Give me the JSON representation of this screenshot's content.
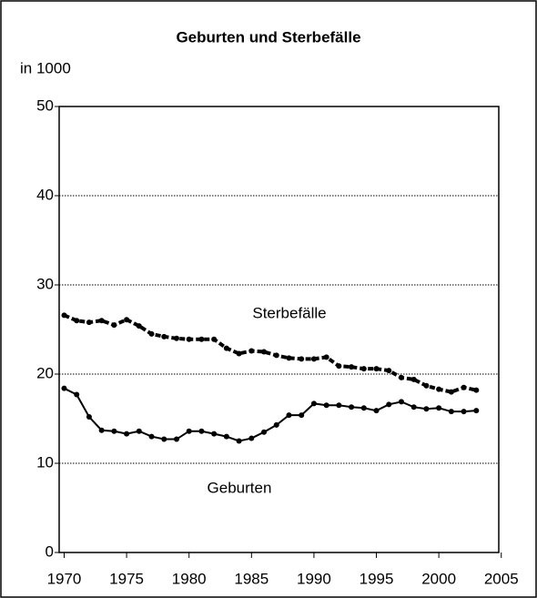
{
  "chart_data": {
    "type": "line",
    "title": "Geburten und Sterbefälle",
    "ylabel": "in 1000",
    "x": [
      1970,
      1971,
      1972,
      1973,
      1974,
      1975,
      1976,
      1977,
      1978,
      1979,
      1980,
      1981,
      1982,
      1983,
      1984,
      1985,
      1986,
      1987,
      1988,
      1989,
      1990,
      1991,
      1992,
      1993,
      1994,
      1995,
      1996,
      1997,
      1998,
      1999,
      2000,
      2001,
      2002,
      2003
    ],
    "series": [
      {
        "name": "Sterbefälle",
        "color": "#000000",
        "line_style": "dashed",
        "values": [
          26.6,
          26.0,
          25.8,
          26.0,
          25.5,
          26.1,
          25.4,
          24.5,
          24.2,
          24.0,
          23.9,
          23.9,
          23.9,
          22.9,
          22.3,
          22.6,
          22.5,
          22.1,
          21.8,
          21.7,
          21.7,
          21.9,
          20.9,
          20.8,
          20.6,
          20.6,
          20.4,
          19.6,
          19.4,
          18.7,
          18.3,
          18.0,
          18.5,
          18.2
        ]
      },
      {
        "name": "Geburten",
        "color": "#000000",
        "line_style": "solid",
        "values": [
          18.4,
          17.7,
          15.2,
          13.7,
          13.6,
          13.3,
          13.6,
          13.0,
          12.7,
          12.7,
          13.6,
          13.6,
          13.3,
          13.0,
          12.5,
          12.8,
          13.5,
          14.3,
          15.4,
          15.4,
          16.7,
          16.5,
          16.5,
          16.3,
          16.2,
          15.9,
          16.6,
          16.9,
          16.3,
          16.1,
          16.2,
          15.8,
          15.8,
          15.9
        ]
      }
    ],
    "xlim": [
      1969.6,
      2004.8
    ],
    "xticks": [
      1970,
      1975,
      1980,
      1985,
      1990,
      1995,
      2000,
      2005
    ],
    "ylim": [
      0,
      50
    ],
    "yticks": [
      0,
      10,
      20,
      30,
      40,
      50
    ],
    "grid": true
  }
}
